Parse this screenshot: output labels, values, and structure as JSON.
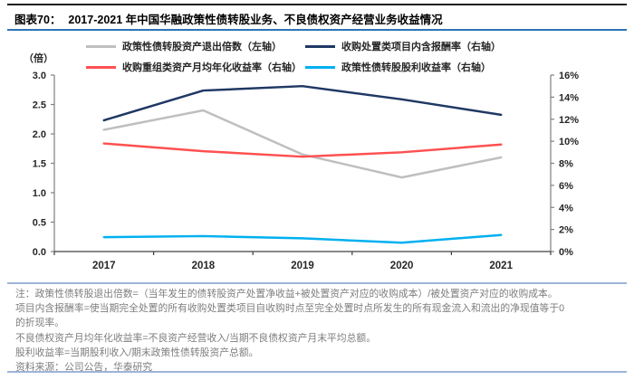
{
  "header": {
    "figure_label": "图表70：",
    "title": "2017-2021 年中国华融政策性债转股业务、不良债权资产经营业务收益情况"
  },
  "chart_data": {
    "type": "line",
    "categories": [
      "2017",
      "2018",
      "2019",
      "2020",
      "2021"
    ],
    "left_axis": {
      "unit_label": "（倍）",
      "min": 0,
      "max": 3,
      "step": 0.5,
      "tick_labels": [
        "3.0",
        "2.5",
        "2.0",
        "1.5",
        "1.0",
        "0.5",
        "0.0"
      ]
    },
    "right_axis": {
      "min": 0,
      "max": 16,
      "step": 2,
      "tick_labels": [
        "16%",
        "14%",
        "12%",
        "10%",
        "8%",
        "6%",
        "4%",
        "2%",
        "0%"
      ]
    },
    "grid": false,
    "legend_position": "top",
    "series": [
      {
        "name": "政策性债转股资产退出倍数（左轴）",
        "axis": "left",
        "color": "#bfbfbf",
        "values": [
          2.07,
          2.4,
          1.65,
          1.26,
          1.6
        ]
      },
      {
        "name": "收购处置类项目内含报酬率（右轴）",
        "axis": "right",
        "color": "#1f3864",
        "values": [
          11.9,
          14.6,
          15.0,
          13.8,
          12.4
        ]
      },
      {
        "name": "收购重组类资产月均年化收益率（右轴）",
        "axis": "right",
        "color": "#ff5050",
        "values": [
          9.8,
          9.1,
          8.6,
          9.0,
          9.7
        ]
      },
      {
        "name": "政策性债转股股利收益率（右轴）",
        "axis": "right",
        "color": "#00b0f0",
        "values": [
          1.3,
          1.4,
          1.2,
          0.8,
          1.5
        ]
      }
    ]
  },
  "notes": {
    "lines": [
      "注：政策性债转股退出倍数=（当年发生的债转股资产处置净收益+被处置资产对应的收购成本）/被处置资产对应的收购成本。",
      "项目内含报酬率=使当期完全处置的所有收购处置类项目自收购时点至完全处置时点所发生的所有现金流入和流出的净现值等于0",
      "的折现率。",
      "不良债权资产月均年化收益率=不良资产经营收入/当期不良债权资产月末平均总额。",
      "股利收益率=当期股利收入/期末政策性债转股资产总额。"
    ],
    "source": "资料来源：公司公告，华泰研究"
  },
  "colors": {
    "top_rule": "#1f1f1f",
    "title_rule": "#2e74b5",
    "divider": "#9db4d6",
    "axis": "#7f7f7f",
    "axis_text": "#262626",
    "note_text": "#7d7d7d"
  }
}
